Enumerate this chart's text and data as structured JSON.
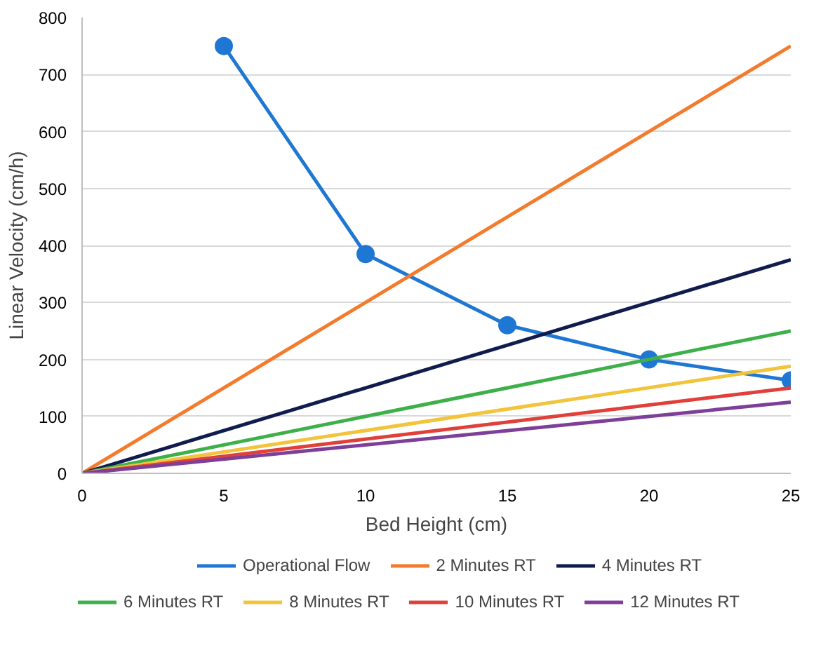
{
  "chart_data": {
    "type": "line",
    "xlabel": "Bed Height (cm)",
    "ylabel": "Linear Velocity (cm/h)",
    "xlim": [
      0,
      25
    ],
    "xticks": [
      0,
      5,
      10,
      15,
      20,
      25
    ],
    "ylim": [
      0,
      800
    ],
    "yticks": [
      0,
      100,
      200,
      300,
      400,
      500,
      600,
      700,
      800
    ],
    "grid": "y",
    "legend": "bottom",
    "series": [
      {
        "name": "Operational Flow",
        "color": "#1f77d4",
        "x": [
          5,
          10,
          15,
          20,
          25
        ],
        "values": [
          750,
          385,
          260,
          200,
          163
        ],
        "marker": "circle"
      },
      {
        "name": "2 Minutes RT",
        "color": "#f47b2c",
        "x": [
          0,
          25
        ],
        "values": [
          0,
          750
        ],
        "marker": "none"
      },
      {
        "name": "4 Minutes RT",
        "color": "#0f1c4d",
        "x": [
          0,
          25
        ],
        "values": [
          0,
          375
        ],
        "marker": "none"
      },
      {
        "name": "6 Minutes RT",
        "color": "#3eb049",
        "x": [
          0,
          25
        ],
        "values": [
          0,
          250
        ],
        "marker": "none"
      },
      {
        "name": "8 Minutes RT",
        "color": "#f2c43c",
        "x": [
          0,
          25
        ],
        "values": [
          0,
          188
        ],
        "marker": "none"
      },
      {
        "name": "10 Minutes RT",
        "color": "#e0403a",
        "x": [
          0,
          25
        ],
        "values": [
          0,
          150
        ],
        "marker": "none"
      },
      {
        "name": "12 Minutes RT",
        "color": "#7e3f98",
        "x": [
          0,
          25
        ],
        "values": [
          0,
          125
        ],
        "marker": "none"
      }
    ]
  }
}
